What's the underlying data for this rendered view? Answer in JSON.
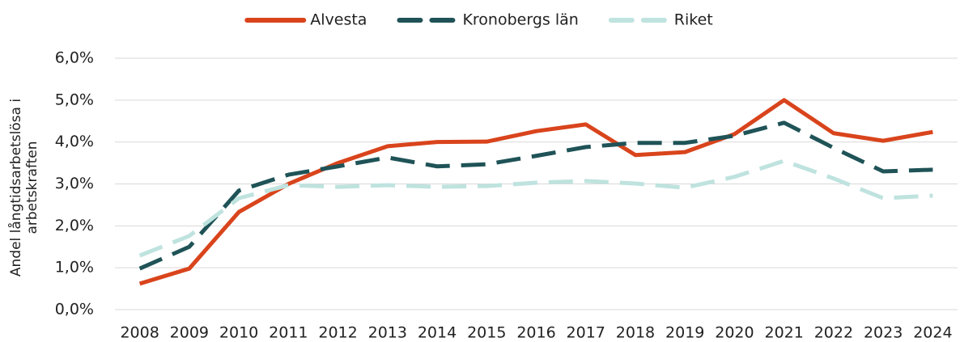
{
  "chart_data": {
    "type": "line",
    "y_label": "Andel långtidsarbetslösa i arbetskraften",
    "categories": [
      "2008",
      "2009",
      "2010",
      "2011",
      "2012",
      "2013",
      "2014",
      "2015",
      "2016",
      "2017",
      "2018",
      "2019",
      "2020",
      "2021",
      "2022",
      "2023",
      "2024"
    ],
    "series": [
      {
        "name": "Alvesta",
        "color": "#d9441c",
        "style": "solid",
        "values": [
          0.62,
          0.98,
          2.33,
          3.0,
          3.5,
          3.9,
          4.0,
          4.01,
          4.26,
          4.42,
          3.69,
          3.76,
          4.19,
          5.0,
          4.21,
          4.03,
          4.24
        ]
      },
      {
        "name": "Kronobergs län",
        "color": "#1f5357",
        "style": "dashed",
        "values": [
          0.98,
          1.5,
          2.84,
          3.22,
          3.42,
          3.63,
          3.42,
          3.47,
          3.67,
          3.88,
          3.98,
          3.98,
          4.15,
          4.46,
          3.86,
          3.3,
          3.34
        ]
      },
      {
        "name": "Riket",
        "color": "#bfe3df",
        "style": "dashed",
        "values": [
          1.29,
          1.76,
          2.66,
          2.97,
          2.93,
          2.97,
          2.93,
          2.95,
          3.03,
          3.07,
          3.01,
          2.91,
          3.17,
          3.55,
          3.13,
          2.66,
          2.72
        ]
      }
    ],
    "ylim": [
      0,
      6
    ],
    "yticks": [
      {
        "value": 0,
        "label": "0,0%"
      },
      {
        "value": 1,
        "label": "1,0%"
      },
      {
        "value": 2,
        "label": "2,0%"
      },
      {
        "value": 3,
        "label": "3,0%"
      },
      {
        "value": 4,
        "label": "4,0%"
      },
      {
        "value": 5,
        "label": "5,0%"
      },
      {
        "value": 6,
        "label": "6,0%"
      }
    ],
    "grid": true,
    "legend": "top"
  }
}
